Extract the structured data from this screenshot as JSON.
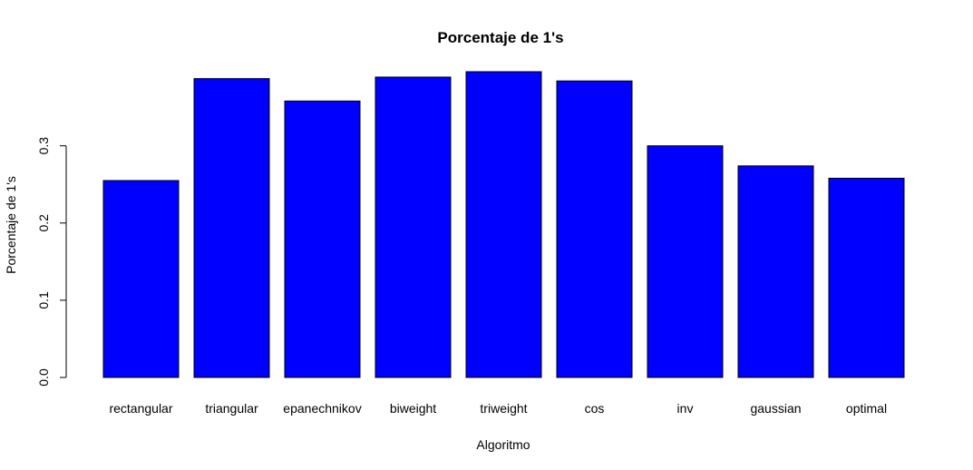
{
  "chart_data": {
    "type": "bar",
    "title": "Porcentaje de 1's",
    "xlabel": "Algoritmo",
    "ylabel": "Porcentaje de 1's",
    "categories": [
      "rectangular",
      "triangular",
      "epanechnikov",
      "biweight",
      "triweight",
      "cos",
      "inv",
      "gaussian",
      "optimal"
    ],
    "values": [
      0.255,
      0.387,
      0.358,
      0.389,
      0.396,
      0.384,
      0.3,
      0.274,
      0.258
    ],
    "ylim": [
      0,
      0.4
    ],
    "yticks": [
      0.0,
      0.1,
      0.2,
      0.3
    ],
    "ytick_labels": [
      "0.0",
      "0.1",
      "0.2",
      "0.3"
    ],
    "bar_color": "#0000ff",
    "bar_border_color": "#000000",
    "grid": false,
    "legend": "none"
  }
}
